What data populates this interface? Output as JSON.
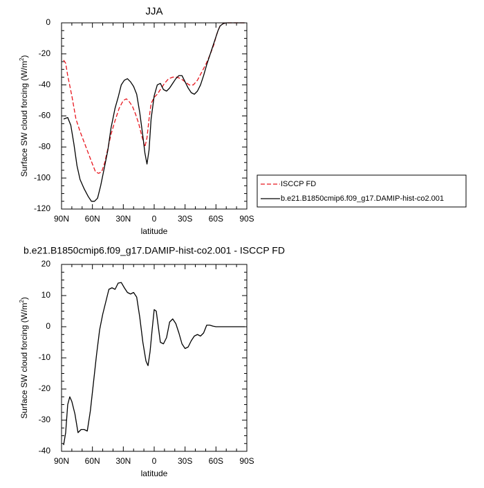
{
  "chart_data": [
    {
      "type": "line",
      "title": "JJA",
      "xlabel": "latitude",
      "ylabel": "Surface SW cloud forcing (W/m",
      "ylabel_sup": "2",
      "ylabel_end": ")",
      "xlim": [
        90,
        -90
      ],
      "ylim": [
        -120,
        0
      ],
      "xticks": [
        90,
        60,
        30,
        0,
        -30,
        -60,
        -90
      ],
      "xtick_labels": [
        "90N",
        "60N",
        "30N",
        "0",
        "30S",
        "60S",
        "90S"
      ],
      "yticks": [
        0,
        -20,
        -40,
        -60,
        -80,
        -100,
        -120
      ],
      "ytick_labels": [
        "0",
        "-20",
        "-40",
        "-60",
        "-80",
        "-100",
        "-120"
      ],
      "legend": "outside-right",
      "series": [
        {
          "name": "ISCCP FD",
          "color": "#e8141c",
          "dash": "dashed",
          "x": [
            88,
            86,
            84,
            80,
            76,
            72,
            68,
            64,
            60,
            57,
            54,
            51,
            48,
            45,
            42,
            38,
            34,
            30,
            27,
            24,
            21,
            18,
            15,
            12,
            9,
            7,
            5,
            3,
            0,
            -3,
            -6,
            -10,
            -14,
            -18,
            -22,
            -26,
            -30,
            -34,
            -38,
            -42,
            -46,
            -50,
            -54,
            -58,
            -60,
            -62,
            -64,
            -67,
            -70,
            -75,
            -80,
            -85,
            -88
          ],
          "y": [
            -24,
            -26,
            -34,
            -47,
            -62,
            -70,
            -77,
            -84,
            -91,
            -96,
            -97,
            -96,
            -90,
            -81,
            -72,
            -63,
            -55,
            -50,
            -49,
            -51,
            -54,
            -59,
            -65,
            -73,
            -80,
            -74,
            -62,
            -52,
            -48,
            -46,
            -43,
            -39,
            -36,
            -35,
            -35,
            -36,
            -38,
            -40,
            -40,
            -37,
            -32,
            -27,
            -21,
            -14,
            -9,
            -5,
            -2,
            -0.5,
            0,
            0,
            0,
            0,
            0
          ]
        },
        {
          "name": "b.e21.B1850cmip6.f09_g17.DAMIP-hist-co2.001",
          "color": "#000000",
          "dash": "solid",
          "x": [
            88,
            84,
            81,
            78,
            75,
            72,
            68,
            64,
            61,
            58,
            55,
            52,
            48,
            45,
            42,
            38,
            35,
            32,
            29,
            26,
            23,
            20,
            17,
            14,
            11,
            9,
            7,
            5,
            3,
            0,
            -3,
            -6,
            -9,
            -12,
            -15,
            -18,
            -21,
            -24,
            -27,
            -30,
            -33,
            -36,
            -39,
            -42,
            -45,
            -48,
            -51,
            -54,
            -57,
            -60,
            -62,
            -64,
            -67,
            -70,
            -75,
            -80,
            -85,
            -88
          ],
          "y": [
            -62,
            -61,
            -66,
            -78,
            -92,
            -101,
            -107,
            -112,
            -115,
            -115,
            -113,
            -105,
            -92,
            -82,
            -68,
            -55,
            -48,
            -40,
            -37,
            -36,
            -38,
            -41,
            -46,
            -58,
            -73,
            -84,
            -91,
            -82,
            -62,
            -47,
            -40,
            -39,
            -43,
            -44,
            -42,
            -39,
            -36,
            -34,
            -34,
            -38,
            -42,
            -45,
            -46,
            -44,
            -40,
            -34,
            -27,
            -21,
            -15,
            -9,
            -5,
            -2,
            -0.5,
            0,
            0,
            0,
            0,
            0
          ]
        }
      ]
    },
    {
      "type": "line",
      "title": "b.e21.B1850cmip6.f09_g17.DAMIP-hist-co2.001 - ISCCP FD",
      "xlabel": "latitude",
      "ylabel": "Surface SW cloud forcing (W/m",
      "ylabel_sup": "2",
      "ylabel_end": ")",
      "xlim": [
        90,
        -90
      ],
      "ylim": [
        -40,
        20
      ],
      "xticks": [
        90,
        60,
        30,
        0,
        -30,
        -60,
        -90
      ],
      "xtick_labels": [
        "90N",
        "60N",
        "30N",
        "0",
        "30S",
        "60S",
        "90S"
      ],
      "yticks": [
        20,
        10,
        0,
        -10,
        -20,
        -30,
        -40
      ],
      "ytick_labels": [
        "20",
        "10",
        "0",
        "-10",
        "-20",
        "-30",
        "-40"
      ],
      "series": [
        {
          "color": "#000000",
          "dash": "solid",
          "x": [
            88,
            86,
            84,
            82,
            80,
            77,
            74,
            71,
            68,
            65,
            62,
            59,
            56,
            53,
            50,
            47,
            44,
            41,
            38,
            35,
            32,
            29,
            26,
            23,
            20,
            17,
            14,
            11,
            8,
            6,
            4,
            2,
            0,
            -2,
            -4,
            -6,
            -9,
            -12,
            -15,
            -18,
            -21,
            -24,
            -27,
            -30,
            -33,
            -36,
            -39,
            -42,
            -45,
            -48,
            -51,
            -54,
            -57,
            -60,
            -63,
            -66,
            -70,
            -75,
            -80,
            -85,
            -88
          ],
          "y": [
            -38,
            -34,
            -25,
            -22.5,
            -24,
            -28,
            -34,
            -33,
            -33,
            -33.5,
            -27,
            -18,
            -9,
            -1,
            4,
            8,
            12,
            12.5,
            12,
            14,
            14.2,
            12.5,
            11,
            10.5,
            11,
            9.5,
            3,
            -5,
            -11,
            -12.5,
            -8,
            -1,
            5.5,
            5,
            0,
            -5,
            -5.5,
            -3.5,
            1.5,
            2.5,
            1,
            -2,
            -5.5,
            -7,
            -6.5,
            -4.5,
            -3,
            -2.5,
            -3,
            -2,
            0.5,
            0.5,
            0.2,
            0,
            0,
            0,
            0,
            0,
            0,
            0,
            0
          ]
        }
      ]
    }
  ]
}
